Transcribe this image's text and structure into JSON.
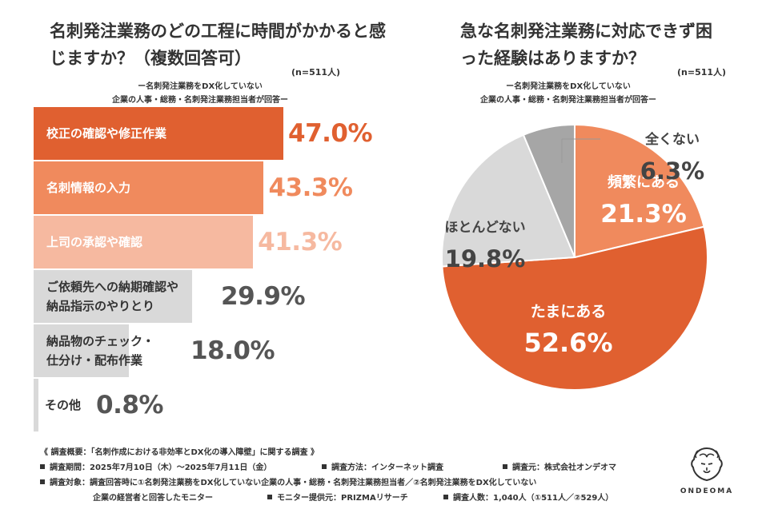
{
  "left": {
    "title": "名刺発注業務のどの工程に時間がかかると感じますか？（複数回答可）",
    "n": "(n=511人)",
    "subtitle_line1": "ー名刺発注業務をDX化していない",
    "subtitle_line2": "企業の人事・総務・名刺発注業務担当者が回答ー"
  },
  "right": {
    "title": "急な名刺発注業務に対応できず困った経験はありますか？",
    "n": "(n=511人)",
    "subtitle_line1": "ー名刺発注業務をDX化していない",
    "subtitle_line2": "企業の人事・総務・名刺発注業務担当者が回答ー"
  },
  "chart_data": [
    {
      "type": "bar",
      "orientation": "horizontal",
      "title": "名刺発注業務のどの工程に時間がかかると感じますか？（複数回答可）",
      "unit": "%",
      "categories": [
        "校正の確認や修正作業",
        "名刺情報の入力",
        "上司の承認や確認",
        "ご依頼先への納期確認や\n納品指示のやりとり",
        "納品物のチェック・\n仕分け・配布作業",
        "その他"
      ],
      "values": [
        47.0,
        43.3,
        41.3,
        29.9,
        18.0,
        0.8
      ],
      "value_labels": [
        "47.0%",
        "43.3%",
        "41.3%",
        "29.9%",
        "18.0%",
        "0.8%"
      ],
      "colors": [
        "#e06030",
        "#f08a5d",
        "#f6b9a0",
        "#d9d9d9",
        "#d9d9d9",
        "#d9d9d9"
      ],
      "label_colors": [
        "#ffffff",
        "#ffffff",
        "#ffffff",
        "#333333",
        "#333333",
        "#333333"
      ],
      "value_colors": [
        "#e06030",
        "#f08a5d",
        "#f6b9a0",
        "#555555",
        "#555555",
        "#555555"
      ]
    },
    {
      "type": "pie",
      "title": "急な名刺発注業務に対応できず困った経験はありますか？",
      "labels": [
        "頻繁にある",
        "たまにある",
        "ほとんどない",
        "全くない"
      ],
      "values": [
        21.3,
        52.6,
        19.8,
        6.3
      ],
      "value_labels": [
        "21.3%",
        "52.6%",
        "19.8%",
        "6.3%"
      ],
      "colors": [
        "#f08a5d",
        "#e06030",
        "#d9d9d9",
        "#a6a6a6"
      ],
      "text_colors": [
        "#ffffff",
        "#ffffff",
        "#444444",
        "#444444"
      ]
    }
  ],
  "footer": {
    "heading": "《 調査概要：「名刺作成における非効率とDX化の導入障壁」に関する調査 》",
    "period": "調査期間：2025年7月10日（木）～2025年7月11日（金）",
    "method": "調査方法：インターネット調査",
    "source": "調査元：株式会社オンデオマ",
    "target_line1": "調査対象：調査回答時に①名刺発注業務をDX化していない企業の人事・総務・名刺発注業務担当者／②名刺発注業務をDX化していない",
    "target_line2": "企業の経営者と回答したモニター",
    "provider": "モニター提供元：PRIZMAリサーチ",
    "count": "調査人数：1,040人（①511人／②529人）"
  },
  "logo": {
    "text": "ONDEOMA",
    "icon": "lion-head-icon"
  }
}
